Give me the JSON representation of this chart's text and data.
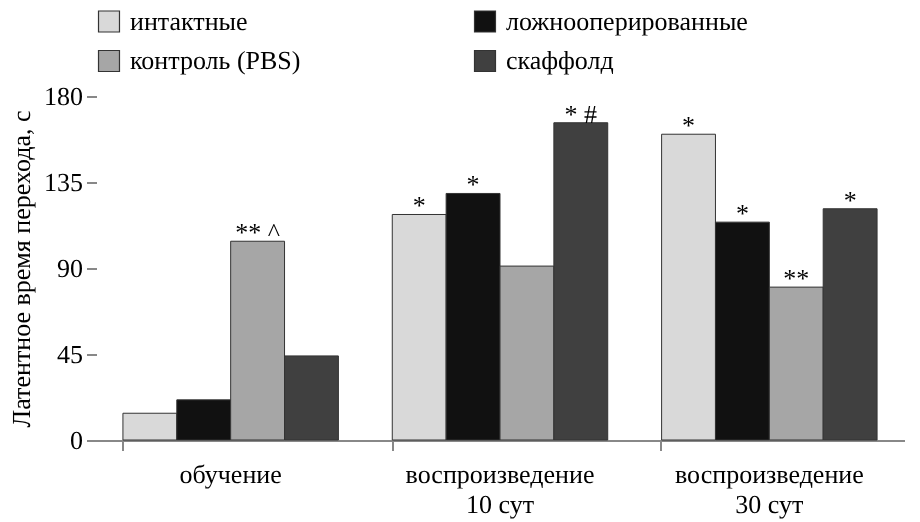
{
  "chart_data": {
    "type": "bar",
    "ylabel": "Латентное время перехода, с",
    "categories": [
      "обучение",
      "воспроизведение 10 сут",
      "воспроизведение 30 сут"
    ],
    "series": [
      {
        "name": "интактные",
        "color": "#d9d9d9",
        "values": [
          14,
          118,
          160
        ],
        "value_labels": [
          null,
          "*",
          "*"
        ]
      },
      {
        "name": "ложнооперированные",
        "color": "#111111",
        "values": [
          21,
          129,
          114
        ],
        "value_labels": [
          null,
          "*",
          "*"
        ]
      },
      {
        "name": "контроль (PBS)",
        "color": "#a6a6a6",
        "values": [
          104,
          91,
          80
        ],
        "value_labels": [
          "** ^",
          null,
          "**"
        ]
      },
      {
        "name": "скаффолд",
        "color": "#404040",
        "values": [
          44,
          166,
          121
        ],
        "value_labels": [
          null,
          "* #",
          "*"
        ]
      }
    ],
    "ylim": [
      0,
      180
    ],
    "yticks": [
      0,
      45,
      90,
      135,
      180
    ],
    "grid": false,
    "legend": "top"
  }
}
